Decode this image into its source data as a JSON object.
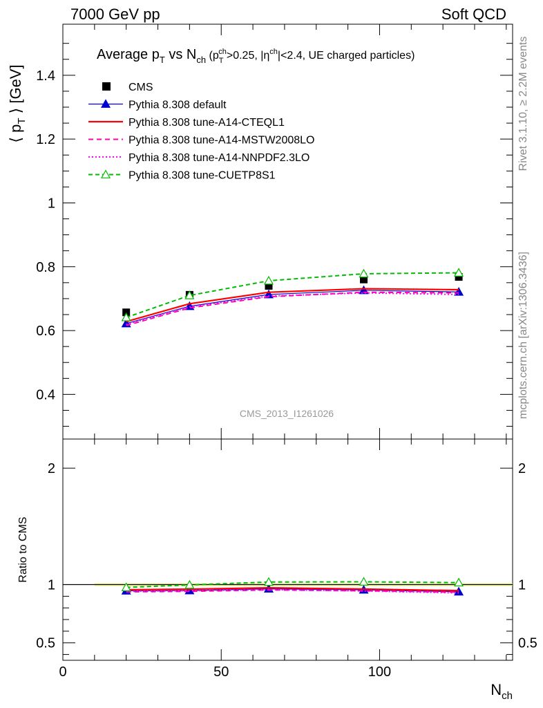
{
  "header": {
    "left": "7000 GeV pp",
    "right": "Soft QCD"
  },
  "side_labels": {
    "rivet": "Rivet 3.1.10, ≥ 2.2M events",
    "mcplots": "mcplots.cern.ch [arXiv:1306.3436]"
  },
  "analysis_id": "CMS_2013_I1261026",
  "chart_data": [
    {
      "type": "line",
      "title": "Average p_T vs N_ch (p_T^ch>0.25, |η^ch|<2.4, UE charged particles)",
      "title_parts": {
        "t1": "Average p",
        "t1_sub": "T",
        "t2": " vs N",
        "t2_sub": "ch",
        "t3": " (p",
        "t3_sub": "T",
        "t3_sup": "ch",
        "t4": ">0.25, |η",
        "t4_sup": "ch",
        "t5": "|<2.4, UE charged particles)"
      },
      "ylabel": "⟨ p_T ⟩ [GeV]",
      "ylabel_parts": {
        "a": "⟨ p",
        "sub": "T",
        "b": " ⟩ [GeV]"
      },
      "xlabel": "N_ch",
      "xlabel_parts": {
        "a": "N",
        "sub": "ch"
      },
      "xlim": [
        0,
        142
      ],
      "ylim": [
        0.26,
        1.56
      ],
      "yticks": [
        0.4,
        0.6,
        0.8,
        1,
        1.2,
        1.4
      ],
      "ytick_labels": [
        "0.4",
        "0.6",
        "0.8",
        "1",
        "1.2",
        "1.4"
      ],
      "legend_position": "top-left",
      "x": [
        20,
        40,
        65,
        95,
        125
      ],
      "series": [
        {
          "name": "CMS",
          "style": "data",
          "color": "#000000",
          "values": [
            0.657,
            0.712,
            0.74,
            0.76,
            0.768
          ]
        },
        {
          "name": "Pythia 8.308 default",
          "style": "solid-triangle",
          "color": "#0000cc",
          "values": [
            0.622,
            0.676,
            0.713,
            0.726,
            0.721
          ]
        },
        {
          "name": "Pythia 8.308 tune-A14-CTEQL1",
          "style": "solid",
          "color": "#ff0000",
          "values": [
            0.628,
            0.684,
            0.72,
            0.731,
            0.728
          ]
        },
        {
          "name": "Pythia 8.308 tune-A14-MSTW2008LO",
          "style": "dashed",
          "color": "#ff00aa",
          "values": [
            0.616,
            0.671,
            0.706,
            0.72,
            0.718
          ]
        },
        {
          "name": "Pythia 8.308 tune-A14-NNPDF2.3LO",
          "style": "dotted",
          "color": "#ff00ff",
          "values": [
            0.619,
            0.674,
            0.708,
            0.718,
            0.713
          ]
        },
        {
          "name": "Pythia 8.308 tune-CUETP8S1",
          "style": "dashed-open-triangle",
          "color": "#00bb00",
          "values": [
            0.641,
            0.71,
            0.756,
            0.778,
            0.781
          ]
        }
      ]
    },
    {
      "type": "line",
      "ylabel": "Ratio to CMS",
      "xlim": [
        0,
        142
      ],
      "ylim": [
        0.35,
        2.25
      ],
      "yticks": [
        0.5,
        1,
        2
      ],
      "ytick_labels": [
        "0.5",
        "1",
        "2"
      ],
      "xticks": [
        0,
        50,
        100
      ],
      "xtick_labels": [
        "0",
        "50",
        "100"
      ],
      "band_color": "#e8f060",
      "x": [
        20,
        40,
        65,
        95,
        125
      ],
      "series": [
        {
          "name": "Pythia 8.308 default",
          "color": "#0000cc",
          "values": [
            0.947,
            0.949,
            0.964,
            0.955,
            0.939
          ]
        },
        {
          "name": "Pythia 8.308 tune-A14-CTEQL1",
          "color": "#ff0000",
          "values": [
            0.956,
            0.961,
            0.973,
            0.962,
            0.948
          ]
        },
        {
          "name": "Pythia 8.308 tune-A14-MSTW2008LO",
          "color": "#ff00aa",
          "values": [
            0.938,
            0.942,
            0.954,
            0.947,
            0.935
          ]
        },
        {
          "name": "Pythia 8.308 tune-A14-NNPDF2.3LO",
          "color": "#ff00ff",
          "values": [
            0.942,
            0.947,
            0.957,
            0.945,
            0.928
          ]
        },
        {
          "name": "Pythia 8.308 tune-CUETP8S1",
          "color": "#00bb00",
          "values": [
            0.976,
            0.997,
            1.022,
            1.024,
            1.017
          ]
        }
      ]
    }
  ]
}
